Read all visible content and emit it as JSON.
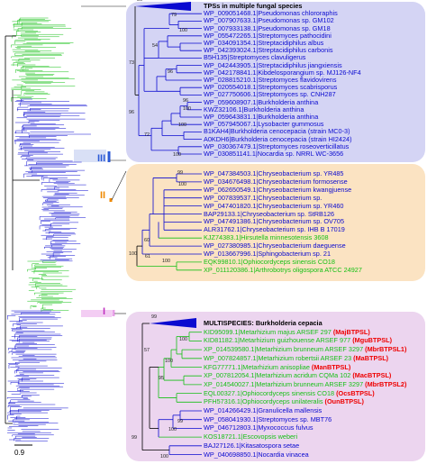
{
  "colors": {
    "panel1": "#d4d4f4",
    "panel2": "#fbe3c2",
    "panel3": "#ecd5ef",
    "blue": "#0a0ad0",
    "green": "#15c015",
    "orange": "#ee8800",
    "pink": "#e8a0e8",
    "red": "#ee0000",
    "clade_blue": "#2b5ad6"
  },
  "clade_labels": {
    "c1": "III",
    "c2": "II",
    "c3": "I"
  },
  "scale": {
    "label": "0.9"
  },
  "panel1": {
    "collapsed_bootstrap": "56",
    "leaves": [
      {
        "label": "TPSs in multiple fungal species",
        "c": "black",
        "b": 1
      },
      {
        "label": "WP_009051468.1|Pseudomonas chlororaphis",
        "c": "blue"
      },
      {
        "label": "WP_007907633.1|Pseudomonas sp. GM102",
        "c": "blue"
      },
      {
        "label": "WP_007933138.1|Pseudomonas sp. GM18",
        "c": "blue"
      },
      {
        "label": "WP_055472265.1|Streptomyces pathocidini",
        "c": "blue"
      },
      {
        "label": "WP_034091354.1|Streptacidiphilus albus",
        "c": "blue"
      },
      {
        "label": "WP_042393024.1|Streptacidiphilus carbonis",
        "c": "blue"
      },
      {
        "label": "B5H135|Streptomyces clavuligerus",
        "c": "blue"
      },
      {
        "label": "WP_042443905.1|Streptacidiphilus jiangxiensis",
        "c": "blue"
      },
      {
        "label": "WP_042178841.1|Kibdelosporangium sp. MJ126-NF4",
        "c": "blue"
      },
      {
        "label": "WP_028815210.1|Streptomyces flavidovirens",
        "c": "blue"
      },
      {
        "label": "WP_020554018.1|Streptomyces scabrisporus",
        "c": "blue"
      },
      {
        "label": "WP_027750606.1|Streptomyces sp. CNH287",
        "c": "blue"
      },
      {
        "label": "WP_059608907.1|Burkholderia anthina",
        "c": "blue"
      },
      {
        "label": "KWZ32106.1|Burkholderia anthina",
        "c": "blue"
      },
      {
        "label": "WP_059643831.1|Burkholderia anthina",
        "c": "blue"
      },
      {
        "label": "WP_057945067.1|Lysobacter gummosus",
        "c": "blue"
      },
      {
        "label": "B1KAH4|Burkholderia cenocepacia (strain MC0-3)",
        "c": "blue"
      },
      {
        "label": "A0KDH6|Burkholderia cenocepacia (strain HI2424)",
        "c": "blue"
      },
      {
        "label": "WP_030367479.1|Streptomyces roseoverticillatus",
        "c": "blue"
      },
      {
        "label": "WP_030851141.1|Nocardia sp. NRRL WC-3656",
        "c": "blue"
      }
    ],
    "bootstraps": [
      "79",
      "100",
      "73",
      "54",
      "96",
      "96",
      "96",
      "100",
      "72",
      "100",
      "100"
    ]
  },
  "panel2": {
    "leaves": [
      {
        "label": "WP_047384503.1|Chryseobacterium sp. YR485",
        "c": "blue"
      },
      {
        "label": "WP_034676498.1|Chryseobacterium formosense",
        "c": "blue"
      },
      {
        "label": "WP_062650549.1|Chryseobacterium kwangjuense",
        "c": "blue"
      },
      {
        "label": "WP_007839537.1|Chryseobacterium sp.",
        "c": "blue"
      },
      {
        "label": "WP_047401820.1|Chryseobacterium sp. YR460",
        "c": "blue"
      },
      {
        "label": "BAP29133.1|Chryseobacterium sp. StRB126",
        "c": "blue"
      },
      {
        "label": "WP_047491386.1|Chryseobacterium sp. OV705",
        "c": "blue"
      },
      {
        "label": "ALR31762.1|Chryseobacterium sp. IHB B 17019",
        "c": "blue"
      },
      {
        "label": "KJZ74383.1|Hirsutella minnesotensis 3608",
        "c": "green"
      },
      {
        "label": "WP_027380985.1|Chryseobacterium daeguense",
        "c": "blue"
      },
      {
        "label": "WP_013667996.1|Sphingobacterium sp. 21",
        "c": "blue"
      },
      {
        "label": "EQK99810.1|Ophiocordyceps sinensis CO18",
        "c": "green"
      },
      {
        "label": "XP_011120386.1|Arthrobotrys oligospora ATCC 24927",
        "c": "green"
      }
    ],
    "bootstraps": [
      "99",
      "100",
      "60",
      "61",
      "100",
      "100"
    ]
  },
  "panel3": {
    "collapsed_bootstrap": "99",
    "leaves": [
      {
        "label": "MULTISPECIES: Burkholderia cepacia",
        "c": "black",
        "b": 1
      },
      {
        "label": "KID95099.1|Metarhizium majus ARSEF 297",
        "c": "green",
        "tag": "(MajBTPSL)"
      },
      {
        "label": "KID81182.1|Metarhizium guizhouense ARSEF 977",
        "c": "green",
        "tag": "(MguBTPSL)"
      },
      {
        "label": "XP_014539580.1|Metarhizium brunneum ARSEF 3297",
        "c": "green",
        "tag": "(MbrBTPSL1)"
      },
      {
        "label": "WP_007824857.1|Metarhizium robertsii ARSEF 23",
        "c": "green",
        "tag": "(MaBTPSL)"
      },
      {
        "label": "KFG77771.1|Metarhizium anisopliae",
        "c": "green",
        "tag": "(ManBTPSL)"
      },
      {
        "label": "XP_007812054.1|Metarhizium acridum CQMa 102",
        "c": "green",
        "tag": "(MacBTPSL)"
      },
      {
        "label": "XP_014540027.1|Metarhizium brunneum ARSEF 3297",
        "c": "green",
        "tag": "(MbrBTPSL2)"
      },
      {
        "label": "EQL00327.1|Ophiocordyceps sinensis CO18",
        "c": "green",
        "tag": "(OcsBTPSL)"
      },
      {
        "label": "PFH57316.1|Ophiocordyceps unilateralis",
        "c": "green",
        "tag": "(OunBTPSL)"
      },
      {
        "label": "WP_014266429.1|Granulicella mallensis",
        "c": "blue"
      },
      {
        "label": "WP_058041930.1|Streptomyces sp. MBT76",
        "c": "blue"
      },
      {
        "label": "WP_046712803.1|Myxococcus fulvus",
        "c": "blue"
      },
      {
        "label": "KOS18721.1|Escovopsis weberi",
        "c": "green"
      },
      {
        "label": "BAJ27126.1|Kitasatospora setae",
        "c": "blue"
      },
      {
        "label": "WP_040698850.1|Nocardia vinacea",
        "c": "blue"
      }
    ],
    "bootstraps": [
      "100",
      "100",
      "57",
      "95",
      "99",
      "100",
      "100",
      "99"
    ]
  }
}
